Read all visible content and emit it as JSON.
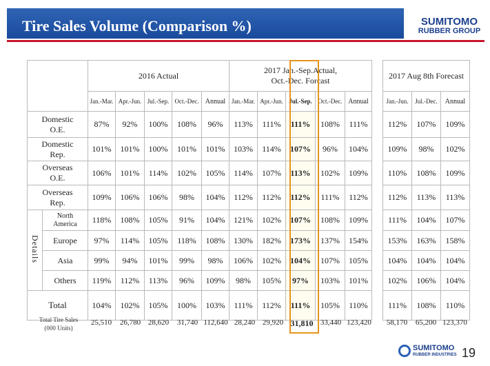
{
  "title": "Tire Sales Volume (Comparison %)",
  "logo": {
    "line1": "SUMITOMO",
    "line2": "RUBBER GROUP"
  },
  "footer_logo": {
    "line1": "SUMITOMO",
    "line2": "RUBBER INDUSTRIES"
  },
  "page_number": "19",
  "groups": {
    "g2016": "2016 Actual",
    "g2017_l1": "2017 Jan.-Sep.Actual,",
    "g2017_l2": "Oct.-Dec. Forcast",
    "gfc": "2017 Aug 8th Forecast"
  },
  "columns": {
    "a2016": [
      "Jan.-Mar.",
      "Apr.-Jun.",
      "Jul.-Sep.",
      "Oct.-Dec.",
      "Annual"
    ],
    "a2017": [
      "Jan.-Mar.",
      "Apr.-Jun.",
      "Jul.-Sep.",
      "Oct.-Dec.",
      "Annual"
    ],
    "fc": [
      "Jan.-Jun.",
      "Jul.-Dec.",
      "Annual"
    ]
  },
  "details_label": "Details",
  "rows": [
    {
      "l1": "Domestic",
      "l2": "O.E.",
      "v": [
        "87%",
        "92%",
        "100%",
        "108%",
        "96%",
        "113%",
        "111%",
        "111%",
        "108%",
        "111%"
      ],
      "f": [
        "112%",
        "107%",
        "109%"
      ]
    },
    {
      "l1": "Domestic",
      "l2": "Rep.",
      "v": [
        "101%",
        "101%",
        "100%",
        "101%",
        "101%",
        "103%",
        "114%",
        "107%",
        "96%",
        "104%"
      ],
      "f": [
        "109%",
        "98%",
        "102%"
      ]
    },
    {
      "l1": "Overseas",
      "l2": "O.E.",
      "v": [
        "106%",
        "101%",
        "114%",
        "102%",
        "105%",
        "114%",
        "107%",
        "113%",
        "102%",
        "109%"
      ],
      "f": [
        "110%",
        "108%",
        "109%"
      ]
    },
    {
      "l1": "Overseas",
      "l2": "Rep.",
      "v": [
        "109%",
        "106%",
        "106%",
        "98%",
        "104%",
        "112%",
        "112%",
        "112%",
        "111%",
        "112%"
      ],
      "f": [
        "112%",
        "113%",
        "113%"
      ]
    },
    {
      "l1": "North",
      "l2": "America",
      "v": [
        "118%",
        "108%",
        "105%",
        "91%",
        "104%",
        "121%",
        "102%",
        "107%",
        "108%",
        "109%"
      ],
      "f": [
        "111%",
        "104%",
        "107%"
      ]
    },
    {
      "l1": "Europe",
      "v": [
        "97%",
        "114%",
        "105%",
        "118%",
        "108%",
        "130%",
        "182%",
        "173%",
        "137%",
        "154%"
      ],
      "f": [
        "153%",
        "163%",
        "158%"
      ]
    },
    {
      "l1": "Asia",
      "v": [
        "99%",
        "94%",
        "101%",
        "99%",
        "98%",
        "106%",
        "102%",
        "104%",
        "107%",
        "105%"
      ],
      "f": [
        "104%",
        "104%",
        "104%"
      ]
    },
    {
      "l1": "Others",
      "v": [
        "119%",
        "112%",
        "113%",
        "96%",
        "109%",
        "98%",
        "105%",
        "97%",
        "103%",
        "101%"
      ],
      "f": [
        "102%",
        "106%",
        "104%"
      ]
    },
    {
      "l1": "Total",
      "v": [
        "104%",
        "102%",
        "105%",
        "100%",
        "103%",
        "111%",
        "112%",
        "111%",
        "105%",
        "110%"
      ],
      "f": [
        "111%",
        "108%",
        "110%"
      ]
    }
  ],
  "units": {
    "label_l1": "Total Tire Sales",
    "label_l2": "(000 Units)",
    "v": [
      "25,510",
      "26,780",
      "28,620",
      "31,740",
      "112,640",
      "28,240",
      "29,920",
      "31,810",
      "33,440",
      "123,420"
    ],
    "f": [
      "58,170",
      "65,200",
      "123,370"
    ]
  }
}
